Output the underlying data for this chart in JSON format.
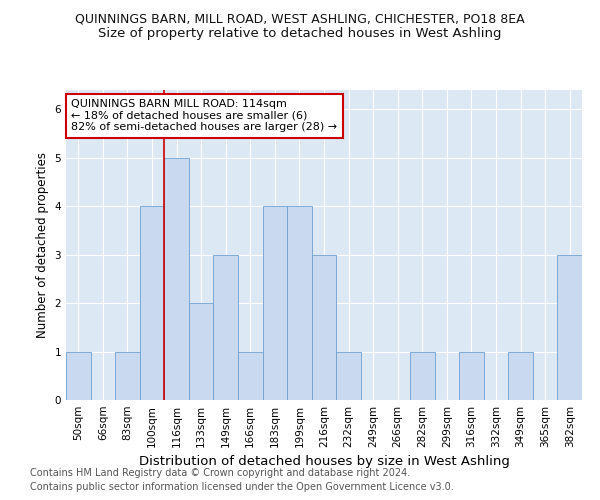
{
  "title": "QUINNINGS BARN, MILL ROAD, WEST ASHLING, CHICHESTER, PO18 8EA",
  "subtitle": "Size of property relative to detached houses in West Ashling",
  "xlabel": "Distribution of detached houses by size in West Ashling",
  "ylabel": "Number of detached properties",
  "categories": [
    "50sqm",
    "66sqm",
    "83sqm",
    "100sqm",
    "116sqm",
    "133sqm",
    "149sqm",
    "166sqm",
    "183sqm",
    "199sqm",
    "216sqm",
    "232sqm",
    "249sqm",
    "266sqm",
    "282sqm",
    "299sqm",
    "316sqm",
    "332sqm",
    "349sqm",
    "365sqm",
    "382sqm"
  ],
  "values": [
    1,
    0,
    1,
    4,
    5,
    2,
    3,
    1,
    4,
    4,
    3,
    1,
    0,
    0,
    1,
    0,
    1,
    0,
    1,
    0,
    3
  ],
  "bar_color": "#c9d9f0",
  "bar_edge_color": "#6fa0d0",
  "vline_x_index": 4,
  "vline_color": "#cc0000",
  "annotation_line1": "QUINNINGS BARN MILL ROAD: 114sqm",
  "annotation_line2": "← 18% of detached houses are smaller (6)",
  "annotation_line3": "82% of semi-detached houses are larger (28) →",
  "annotation_box_color": "#ffffff",
  "annotation_box_edge_color": "#cc0000",
  "ylim": [
    0,
    6.4
  ],
  "yticks": [
    0,
    1,
    2,
    3,
    4,
    5,
    6
  ],
  "footer1": "Contains HM Land Registry data © Crown copyright and database right 2024.",
  "footer2": "Contains public sector information licensed under the Open Government Licence v3.0.",
  "bg_color": "#dde8f5",
  "grid_color": "#ffffff",
  "title_fontsize": 9,
  "subtitle_fontsize": 9.5,
  "xlabel_fontsize": 9.5,
  "ylabel_fontsize": 8.5,
  "tick_fontsize": 7.5,
  "annotation_fontsize": 8,
  "footer_fontsize": 7
}
